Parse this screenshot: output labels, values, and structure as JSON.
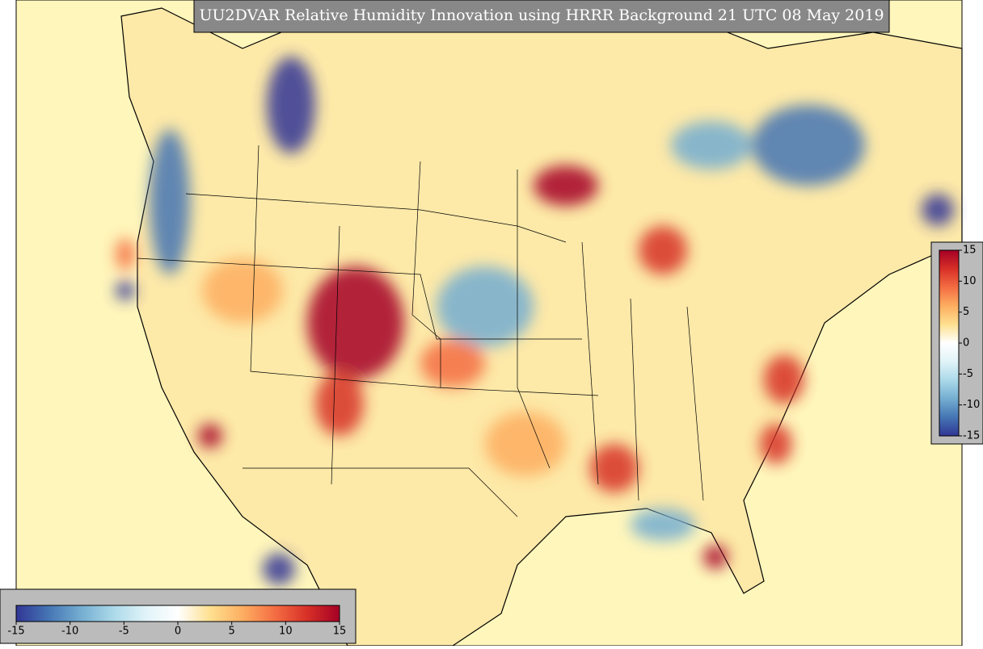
{
  "title": "UU2DVAR Relative Humidity Innovation using HRRR Background 21 UTC 08 May 2019",
  "colormap": [
    "#313695",
    "#4575b4",
    "#74add1",
    "#abd9e9",
    "#e0f3f8",
    "#ffffff",
    "#fee090",
    "#fdae61",
    "#f46d43",
    "#d73027",
    "#a50026"
  ],
  "colorbars": [
    {
      "orientation": "horizontal",
      "lim": [
        -15,
        15
      ],
      "ticks": [
        -15,
        -10,
        -5,
        0,
        5,
        10,
        15
      ]
    },
    {
      "orientation": "vertical",
      "lim": [
        -15,
        15
      ],
      "ticks": [
        15,
        10,
        5,
        0,
        -5,
        -10,
        -15
      ]
    }
  ]
}
